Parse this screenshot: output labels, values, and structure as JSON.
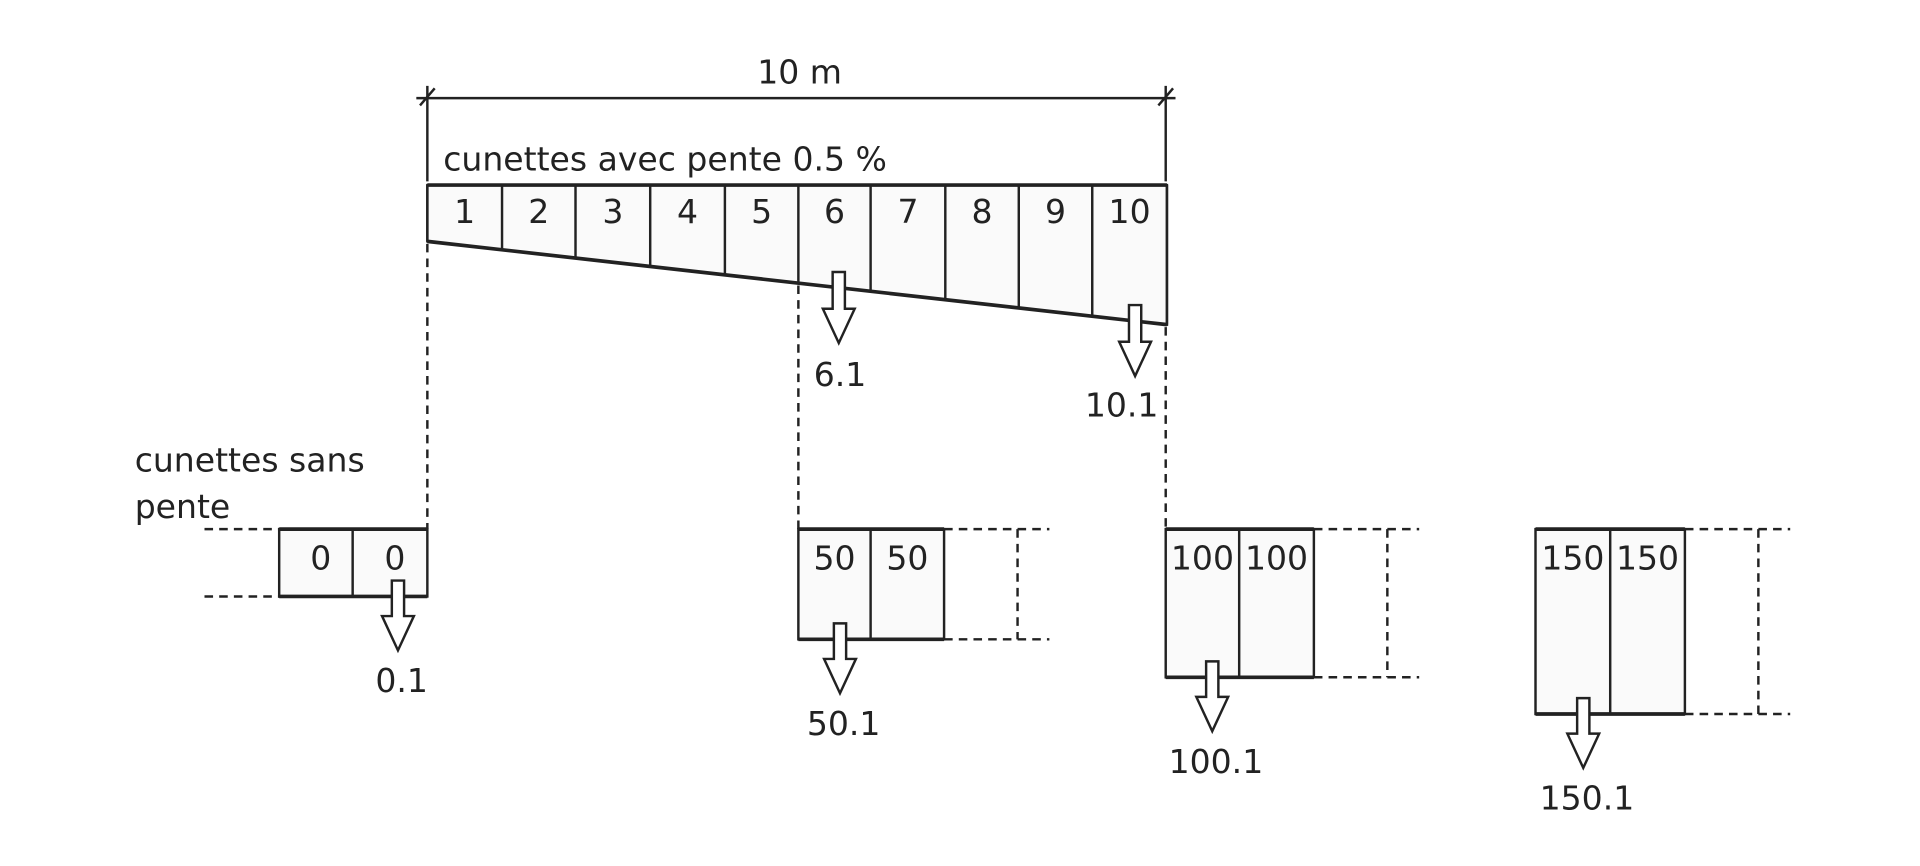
{
  "dimension": {
    "label": "10 m"
  },
  "sloped": {
    "label": "cunettes avec pente 0.5 %",
    "cells": [
      "1",
      "2",
      "3",
      "4",
      "5",
      "6",
      "7",
      "8",
      "9",
      "10"
    ],
    "outlets": [
      "6.1",
      "10.1"
    ]
  },
  "flat": {
    "label_line1": "cunettes sans",
    "label_line2": "pente",
    "groups": [
      {
        "cells": [
          "0",
          "0"
        ],
        "outlet": "0.1"
      },
      {
        "cells": [
          "50",
          "50"
        ],
        "outlet": "50.1"
      },
      {
        "cells": [
          "100",
          "100"
        ],
        "outlet": "100.1"
      },
      {
        "cells": [
          "150",
          "150"
        ],
        "outlet": "150.1"
      }
    ]
  },
  "colors": {
    "line": "#222222",
    "fill": "#fafafa"
  }
}
